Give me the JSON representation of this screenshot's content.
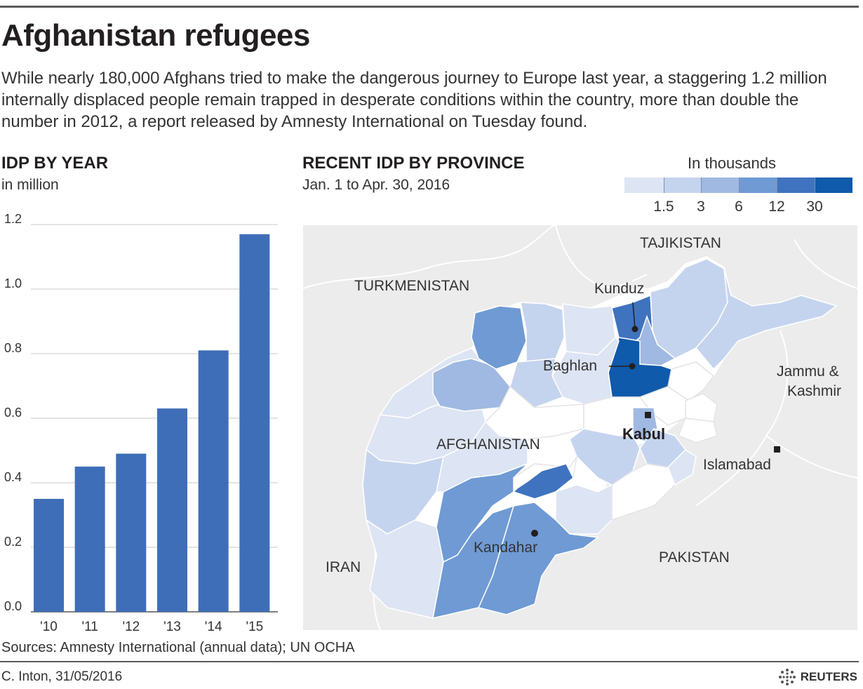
{
  "header": {
    "title": "Afghanistan refugees",
    "intro": "While nearly 180,000 Afghans tried to make the dangerous journey to Europe last year, a staggering 1.2 million internally displaced people remain trapped in desperate conditions within the country, more than double the number in 2012, a report released by Amnesty International on Tuesday found."
  },
  "bar_section": {
    "title": "IDP BY YEAR",
    "subtitle": "in million"
  },
  "map_section": {
    "title": "RECENT IDP BY PROVINCE",
    "subtitle": "Jan. 1 to Apr. 30, 2016",
    "legend_title": "In thousands",
    "legend_ticks": [
      "1.5",
      "3",
      "6",
      "12",
      "30"
    ],
    "legend_colors": [
      "#dde4f3",
      "#c5d4ee",
      "#9fb9e2",
      "#6f9ad4",
      "#3f73bf",
      "#0f5aaa"
    ],
    "labels": {
      "tajikistan": "TAJIKISTAN",
      "turkmenistan": "TURKMENISTAN",
      "afghanistan": "AFGHANISTAN",
      "iran": "IRAN",
      "pakistan": "PAKISTAN",
      "jammu_line1": "Jammu &",
      "jammu_line2": "Kashmir",
      "kunduz": "Kunduz",
      "baghlan": "Baghlan",
      "kabul": "Kabul",
      "islamabad": "Islamabad",
      "kandahar": "Kandahar"
    }
  },
  "chart_data": {
    "type": "bar",
    "title": "IDP BY YEAR",
    "ylabel": "in million",
    "categories": [
      "'10",
      "'11",
      "'12",
      "'13",
      "'14",
      "'15"
    ],
    "values": [
      0.35,
      0.45,
      0.49,
      0.63,
      0.81,
      1.17
    ],
    "yticks": [
      "0.0",
      "0.2",
      "0.4",
      "0.6",
      "0.8",
      "1.0",
      "1.2"
    ],
    "ylim": [
      0,
      1.2
    ],
    "grid": true,
    "bar_color": "#3e6eb8"
  },
  "footer": {
    "source": "Sources: Amnesty International (annual data); UN OCHA",
    "credit": "C. Inton, 31/05/2016",
    "logo": "REUTERS"
  }
}
